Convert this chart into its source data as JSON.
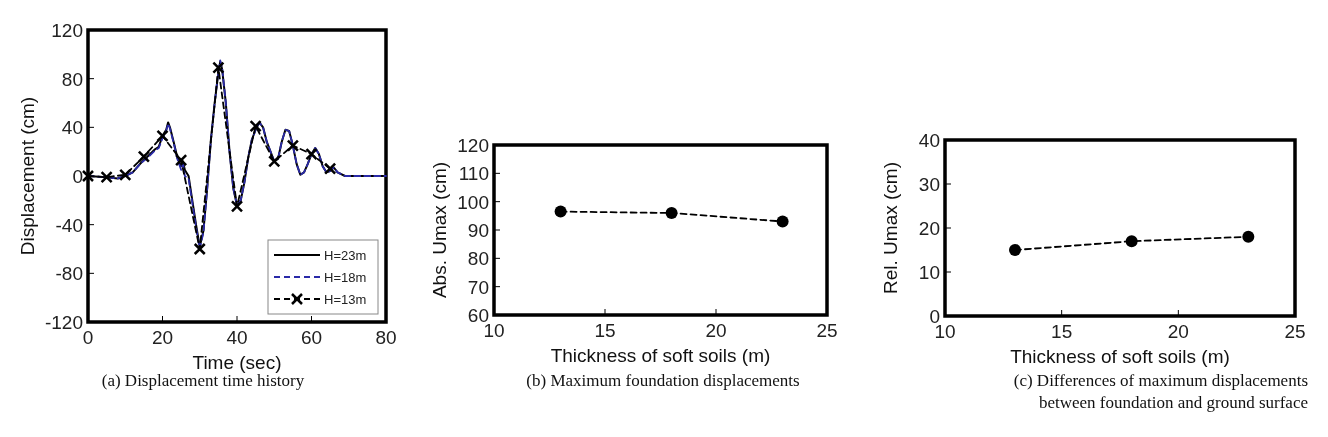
{
  "chart_data": [
    {
      "type": "line",
      "xlabel": "Time (sec)",
      "ylabel": "Displacement (cm)",
      "xlim": [
        0,
        80
      ],
      "xticks": [
        0,
        20,
        40,
        60,
        80
      ],
      "ylim": [
        -120,
        120
      ],
      "yticks": [
        -120,
        -80,
        -40,
        0,
        40,
        80,
        120
      ],
      "grid": false,
      "legend": "bottom right",
      "annotations": [
        "(a) Displacement time history"
      ],
      "series": [
        {
          "name": "H=23m",
          "color": "#000000",
          "line_style": "solid",
          "marker": "none",
          "x": [
            0,
            5,
            8,
            10,
            12,
            14,
            16,
            18,
            19,
            20,
            21,
            21.5,
            22,
            23,
            24,
            25,
            25.5,
            26,
            27,
            28,
            29,
            30,
            31,
            32,
            33,
            34,
            35,
            35.5,
            36,
            37,
            38,
            39,
            40,
            41,
            42,
            43,
            44,
            45,
            46,
            47,
            48,
            49,
            50,
            51,
            52,
            53,
            54,
            55,
            56,
            57,
            58,
            59,
            60,
            61,
            62,
            63,
            64,
            65,
            66,
            67,
            69,
            80
          ],
          "values": [
            0,
            -1,
            -2,
            0,
            3,
            10,
            16,
            22,
            24,
            33,
            38,
            44,
            40,
            28,
            15,
            8,
            12,
            5,
            0,
            -20,
            -40,
            -58,
            -45,
            -10,
            30,
            60,
            85,
            94,
            88,
            60,
            20,
            -10,
            -24,
            -20,
            -5,
            15,
            30,
            38,
            44,
            40,
            28,
            20,
            12,
            14,
            28,
            38,
            37,
            25,
            10,
            1,
            3,
            10,
            18,
            23,
            18,
            8,
            3,
            4,
            7,
            3,
            0,
            0
          ]
        },
        {
          "name": "H=18m",
          "color": "#2a2aa8",
          "line_style": "dashed",
          "marker": "none",
          "x": [
            0,
            5,
            8,
            10,
            12,
            14,
            16,
            18,
            19,
            20,
            21,
            21.5,
            22,
            23,
            24,
            25,
            25.5,
            26,
            27,
            28,
            29,
            30,
            31,
            32,
            33,
            34,
            35,
            35.5,
            36,
            37,
            38,
            39,
            40,
            41,
            42,
            43,
            44,
            45,
            46,
            47,
            48,
            49,
            50,
            51,
            52,
            53,
            54,
            55,
            56,
            57,
            58,
            59,
            60,
            61,
            62,
            63,
            64,
            65,
            66,
            67,
            69,
            80
          ],
          "values": [
            0,
            -1,
            -2,
            0,
            3,
            10,
            15,
            21,
            23,
            31,
            37,
            43,
            39,
            27,
            14,
            5,
            10,
            0,
            -2,
            -22,
            -42,
            -60,
            -46,
            -10,
            30,
            60,
            86,
            95,
            89,
            60,
            20,
            -10,
            -24,
            -20,
            -5,
            15,
            30,
            38,
            44,
            40,
            28,
            20,
            12,
            14,
            28,
            38,
            37,
            25,
            10,
            1,
            3,
            10,
            18,
            23,
            18,
            8,
            3,
            4,
            7,
            3,
            0,
            0
          ]
        },
        {
          "name": "H=13m",
          "color": "#000000",
          "line_style": "dashed",
          "marker": "cross",
          "x": [
            0,
            5,
            10,
            15,
            20,
            25,
            30,
            35,
            40,
            45,
            50,
            55,
            60,
            65
          ],
          "values": [
            0,
            -1,
            1,
            16,
            33,
            13,
            -60,
            89,
            -25,
            41,
            12,
            25,
            18,
            6
          ]
        }
      ]
    },
    {
      "type": "line",
      "xlabel": "Thickness of soft soils (m)",
      "ylabel": "Abs. Umax (cm)",
      "xlim": [
        10,
        25
      ],
      "xticks": [
        10,
        15,
        20,
        25
      ],
      "ylim": [
        60,
        120
      ],
      "yticks": [
        60,
        70,
        80,
        90,
        100,
        110,
        120
      ],
      "grid": false,
      "legend": false,
      "annotations": [
        "(b) Maximum foundation displacements"
      ],
      "series": [
        {
          "color": "#000000",
          "line_style": "dashed",
          "marker": "circle",
          "x": [
            13,
            18,
            23
          ],
          "values": [
            96.5,
            96,
            93
          ]
        }
      ]
    },
    {
      "type": "line",
      "xlabel": "Thickness of soft soils (m)",
      "ylabel": "Rel. Umax (cm)",
      "xlim": [
        10,
        25
      ],
      "xticks": [
        10,
        15,
        20,
        25
      ],
      "ylim": [
        0,
        40
      ],
      "yticks": [
        0,
        10,
        20,
        30,
        40
      ],
      "grid": false,
      "legend": false,
      "annotations": [
        "(c) Differences of maximum displacements\nbetween foundation and ground surface"
      ],
      "series": [
        {
          "color": "#000000",
          "line_style": "dashed",
          "marker": "circle",
          "x": [
            13,
            18,
            23
          ],
          "values": [
            15,
            17,
            18
          ]
        }
      ]
    }
  ]
}
